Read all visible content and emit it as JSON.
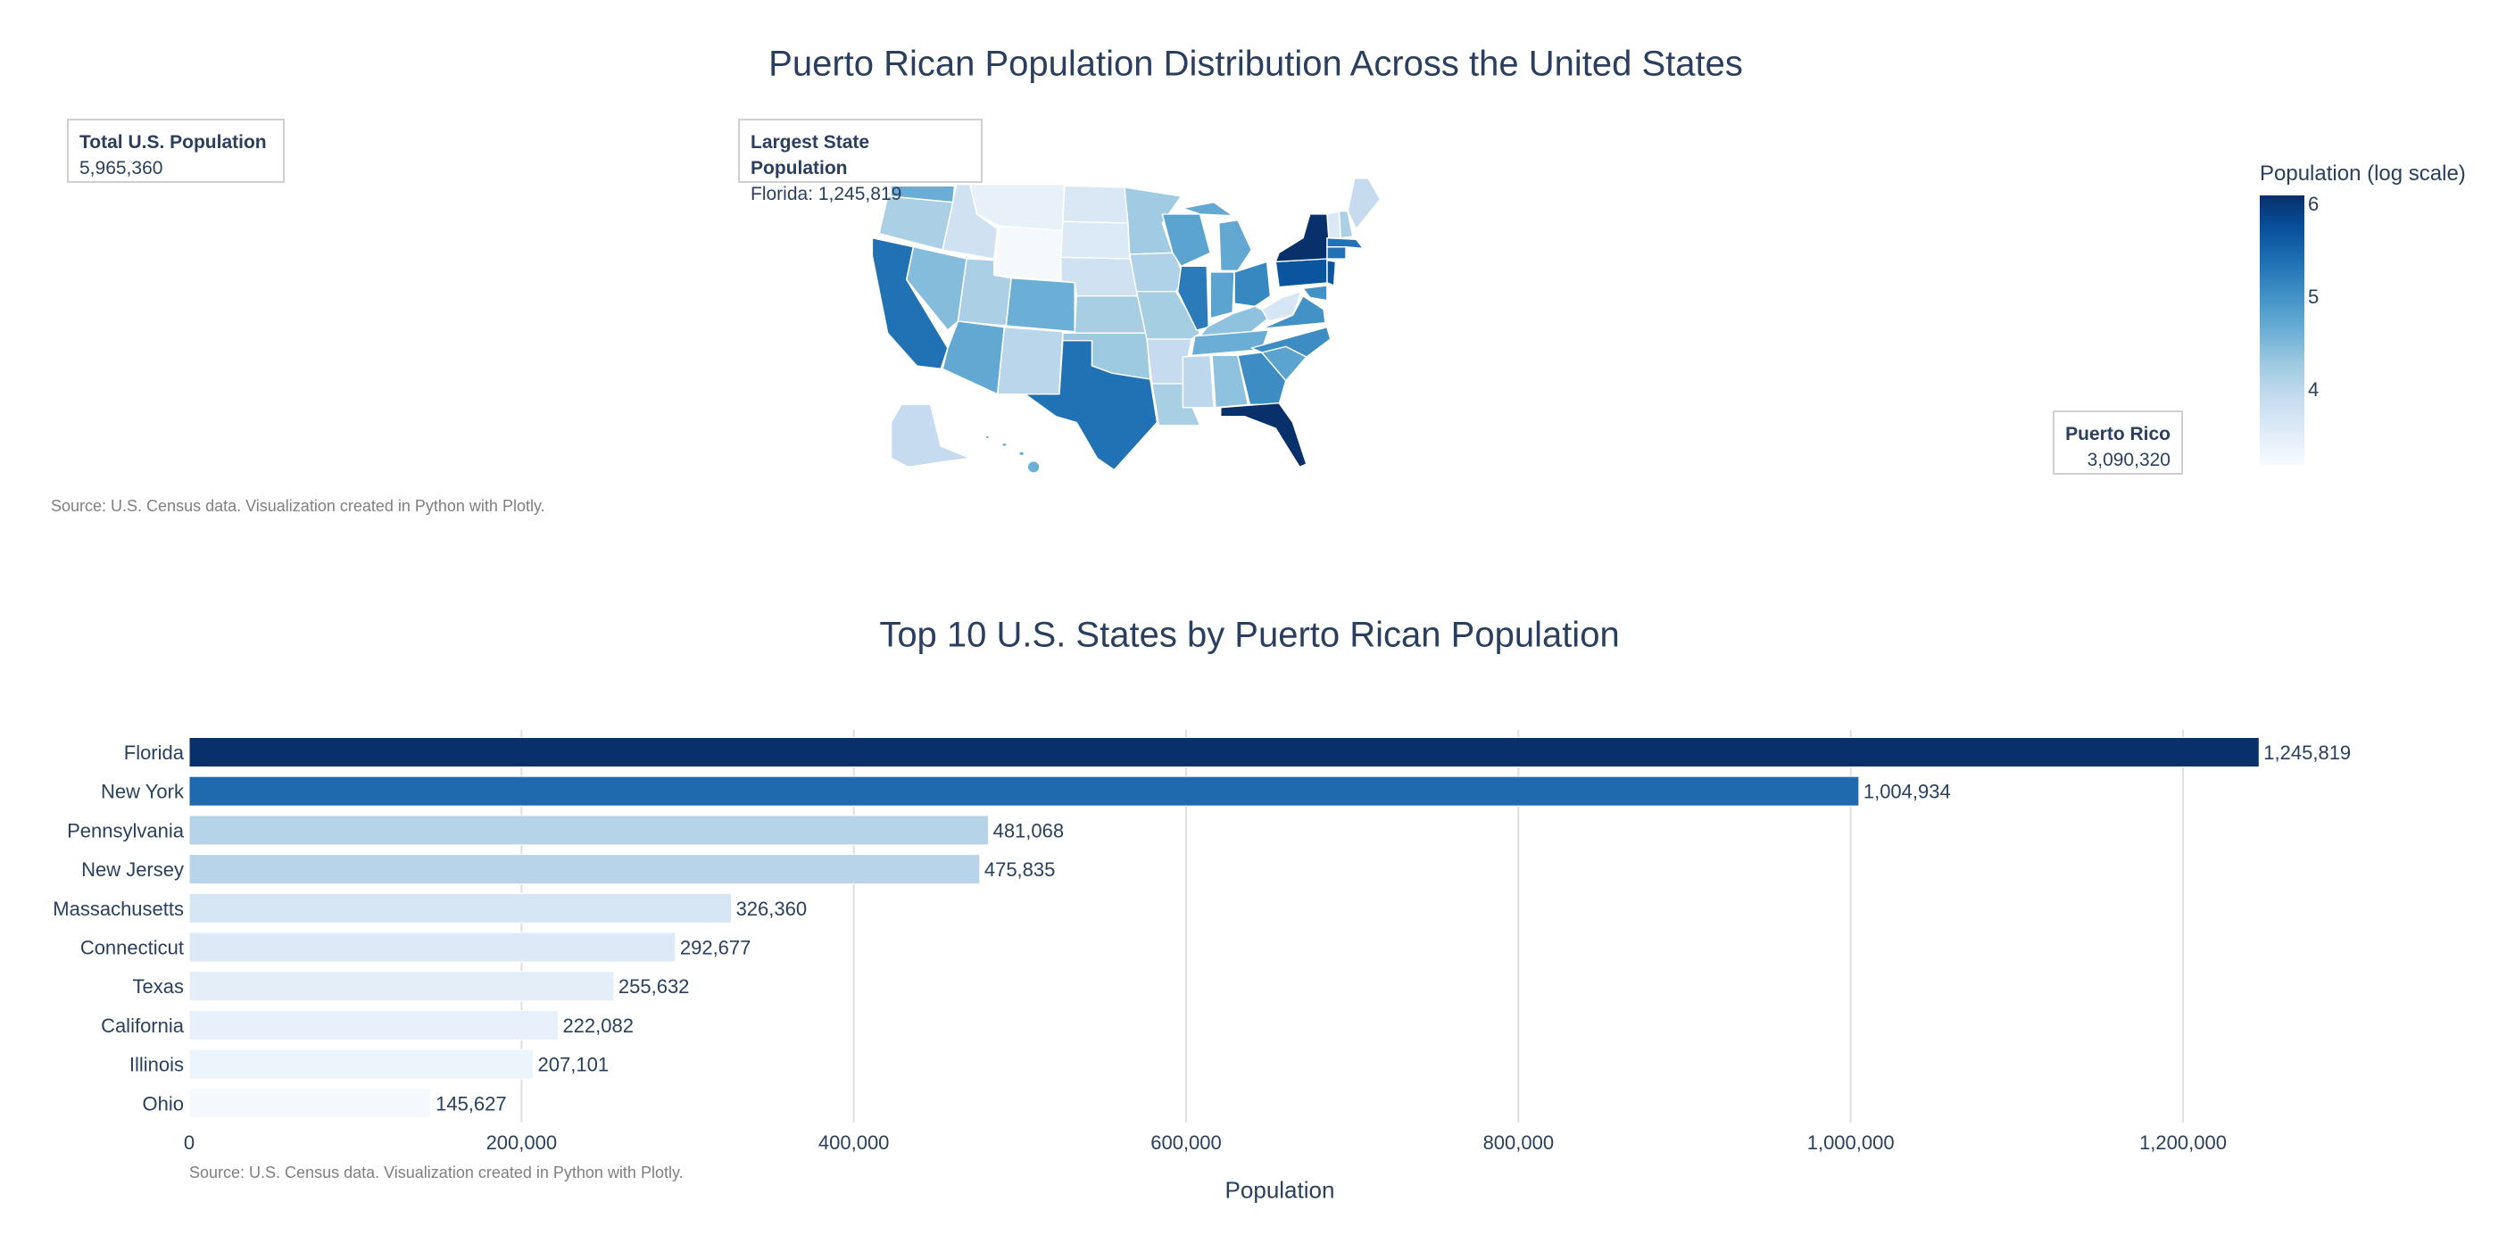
{
  "map_chart": {
    "title": "Puerto Rican Population Distribution Across the United States",
    "source": "Source: U.S. Census data. Visualization created in Python with Plotly.",
    "annotations": {
      "total": {
        "label": "Total U.S. Population",
        "value": "5,965,360"
      },
      "largest": {
        "label": "Largest State Population",
        "value": "Florida: 1,245,819"
      },
      "puerto_rico": {
        "label": "Puerto Rico",
        "value": "3,090,320"
      }
    },
    "colorbar": {
      "title": "Population (log scale)",
      "ticks": [
        "6",
        "5",
        "4"
      ],
      "range": [
        3.19,
        6.1
      ],
      "colorscale": [
        "#f7fbff",
        "#deebf7",
        "#c6dbef",
        "#9ecae1",
        "#6baed6",
        "#4292c6",
        "#2171b5",
        "#08519c",
        "#08306b"
      ]
    },
    "state_colors": {
      "WA": "#6aaed6",
      "OR": "#abd0e6",
      "CA": "#2171b5",
      "ID": "#d0e1f2",
      "NV": "#85bcdc",
      "MT": "#e8f1fa",
      "WY": "#f5f9fe",
      "UT": "#abd0e6",
      "CO": "#6baed6",
      "AZ": "#63a8d3",
      "NM": "#bad6eb",
      "ND": "#dae8f5",
      "SD": "#dce9f6",
      "NE": "#d0e1f2",
      "KS": "#a8cee4",
      "OK": "#9ecae1",
      "TX": "#2171b5",
      "MN": "#a0cbe2",
      "IA": "#b0d2e8",
      "MO": "#a6cee3",
      "AR": "#c6dbef",
      "LA": "#a9cfe5",
      "WI": "#5ba3d0",
      "IL": "#2b7bba",
      "MI": "#63a8d3",
      "IN": "#5ba3d0",
      "OH": "#3787c0",
      "KY": "#8fc2de",
      "TN": "#6aaed6",
      "MS": "#bdd7ec",
      "AL": "#8fc2de",
      "GA": "#3d8dc4",
      "FL": "#08306b",
      "SC": "#5ba3d0",
      "NC": "#3d8dc4",
      "VA": "#4292c6",
      "WV": "#d6e6f4",
      "PA": "#0b559f",
      "NY": "#08306b",
      "NJ": "#0b559f",
      "MD": "#4292c6",
      "CT": "#2171b5",
      "MA": "#2171b5",
      "VT": "#dbe9f6",
      "NH": "#abd0e6",
      "ME": "#c6dbef",
      "AK": "#c6dbef",
      "HI": "#6baed6"
    }
  },
  "chart_data": {
    "type": "bar",
    "orientation": "horizontal",
    "title": "Top 10 U.S. States by Puerto Rican Population",
    "xlabel": "Population",
    "ylabel": "",
    "xlim": [
      0,
      1300000
    ],
    "grid": true,
    "x_ticks": [
      0,
      200000,
      400000,
      600000,
      800000,
      1000000,
      1200000
    ],
    "x_tick_labels": [
      "0",
      "200,000",
      "400,000",
      "600,000",
      "800,000",
      "1,000,000",
      "1,200,000"
    ],
    "categories": [
      "Florida",
      "New York",
      "Pennsylvania",
      "New Jersey",
      "Massachusetts",
      "Connecticut",
      "Texas",
      "California",
      "Illinois",
      "Ohio"
    ],
    "values": [
      1245819,
      1004934,
      481068,
      475835,
      326360,
      292677,
      255632,
      222082,
      207101,
      145627
    ],
    "value_labels": [
      "1,245,819",
      "1,004,934",
      "481,068",
      "475,835",
      "326,360",
      "292,677",
      "255,632",
      "222,082",
      "207,101",
      "145,627"
    ],
    "colors": [
      "#08306b",
      "#1f69ae",
      "#b6d4e9",
      "#b7d4ea",
      "#d6e6f4",
      "#dde9f6",
      "#e3eef9",
      "#e8f1fb",
      "#ecf4fc",
      "#f5f9fe"
    ],
    "source": "Source: U.S. Census data. Visualization created in Python with Plotly."
  }
}
